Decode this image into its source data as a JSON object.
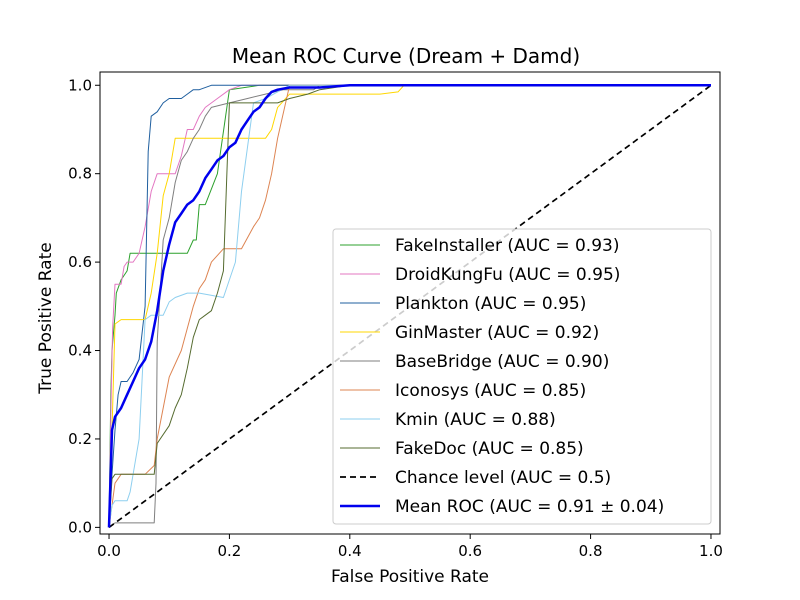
{
  "chart_data": {
    "type": "line",
    "title": "Mean ROC Curve (Dream + Damd)",
    "xlabel": "False Positive Rate",
    "ylabel": "True Positive Rate",
    "xlim": [
      -0.015,
      1.015
    ],
    "ylim": [
      -0.015,
      1.03
    ],
    "xticks": [
      0.0,
      0.2,
      0.4,
      0.6,
      0.8,
      1.0
    ],
    "yticks": [
      0.0,
      0.2,
      0.4,
      0.6,
      0.8,
      1.0
    ],
    "tick_labels": [
      "0.0",
      "0.2",
      "0.4",
      "0.6",
      "0.8",
      "1.0"
    ],
    "grid": false,
    "legend_position": "lower-right",
    "series": [
      {
        "name": "FakeInstaller (AUC = 0.93)",
        "color": "#2ca02c",
        "width": 1,
        "dash": "",
        "x": [
          0,
          0.003,
          0.005,
          0.01,
          0.012,
          0.02,
          0.025,
          0.03,
          0.035,
          0.04,
          0.05,
          0.07,
          0.09,
          0.11,
          0.13,
          0.14,
          0.145,
          0.15,
          0.16,
          0.18,
          0.2,
          0.25,
          0.3,
          0.4,
          1.0
        ],
        "y": [
          0,
          0.3,
          0.4,
          0.48,
          0.53,
          0.56,
          0.57,
          0.58,
          0.62,
          0.62,
          0.62,
          0.62,
          0.62,
          0.62,
          0.62,
          0.65,
          0.65,
          0.73,
          0.73,
          0.8,
          0.99,
          1.0,
          1.0,
          1.0,
          1.0
        ]
      },
      {
        "name": "DroidKungFu (AUC = 0.95)",
        "color": "#e377c2",
        "width": 1,
        "dash": "",
        "x": [
          0,
          0.003,
          0.006,
          0.01,
          0.015,
          0.02,
          0.025,
          0.03,
          0.04,
          0.05,
          0.06,
          0.07,
          0.08,
          0.09,
          0.1,
          0.11,
          0.12,
          0.13,
          0.14,
          0.15,
          0.16,
          0.18,
          0.2,
          0.22,
          0.25,
          0.3,
          1.0
        ],
        "y": [
          0,
          0.25,
          0.45,
          0.55,
          0.55,
          0.55,
          0.59,
          0.6,
          0.6,
          0.62,
          0.68,
          0.76,
          0.8,
          0.8,
          0.8,
          0.8,
          0.84,
          0.9,
          0.9,
          0.93,
          0.95,
          0.97,
          0.99,
          1.0,
          1.0,
          1.0,
          1.0
        ]
      },
      {
        "name": "Plankton (AUC = 0.95)",
        "color": "#1f5f9f",
        "width": 1,
        "dash": "",
        "x": [
          0,
          0.005,
          0.01,
          0.015,
          0.02,
          0.03,
          0.04,
          0.05,
          0.06,
          0.065,
          0.07,
          0.08,
          0.09,
          0.1,
          0.11,
          0.12,
          0.13,
          0.14,
          0.15,
          0.17,
          0.2,
          0.3,
          1.0
        ],
        "y": [
          0,
          0.12,
          0.22,
          0.3,
          0.33,
          0.33,
          0.35,
          0.38,
          0.5,
          0.85,
          0.93,
          0.94,
          0.96,
          0.97,
          0.97,
          0.97,
          0.98,
          0.99,
          0.99,
          1.0,
          1.0,
          1.0,
          1.0
        ]
      },
      {
        "name": "GinMaster (AUC = 0.92)",
        "color": "#ffd700",
        "width": 1,
        "dash": "",
        "x": [
          0,
          0.005,
          0.01,
          0.02,
          0.04,
          0.06,
          0.07,
          0.08,
          0.09,
          0.1,
          0.11,
          0.12,
          0.14,
          0.16,
          0.18,
          0.2,
          0.22,
          0.26,
          0.27,
          0.28,
          0.3,
          0.35,
          0.4,
          0.45,
          0.48,
          0.49,
          0.5,
          1.0
        ],
        "y": [
          0,
          0.22,
          0.46,
          0.47,
          0.47,
          0.47,
          0.53,
          0.62,
          0.75,
          0.8,
          0.88,
          0.88,
          0.88,
          0.88,
          0.88,
          0.88,
          0.88,
          0.88,
          0.9,
          0.95,
          0.98,
          0.98,
          0.98,
          0.98,
          0.985,
          1.0,
          1.0,
          1.0
        ]
      },
      {
        "name": "BaseBridge (AUC = 0.90)",
        "color": "#7f7f7f",
        "width": 1,
        "dash": "",
        "x": [
          0,
          0.01,
          0.05,
          0.075,
          0.078,
          0.08,
          0.09,
          0.1,
          0.11,
          0.12,
          0.13,
          0.14,
          0.15,
          0.16,
          0.17,
          0.2,
          0.23,
          0.26,
          0.29,
          0.32,
          0.34,
          0.35,
          0.4,
          1.0
        ],
        "y": [
          0,
          0.01,
          0.01,
          0.01,
          0.1,
          0.42,
          0.65,
          0.7,
          0.78,
          0.83,
          0.85,
          0.88,
          0.9,
          0.93,
          0.95,
          0.96,
          0.97,
          0.98,
          0.99,
          0.99,
          0.99,
          1.0,
          1.0,
          1.0
        ]
      },
      {
        "name": "Iconosys (AUC = 0.85)",
        "color": "#dd8452",
        "width": 1,
        "dash": "",
        "x": [
          0,
          0.01,
          0.02,
          0.04,
          0.06,
          0.075,
          0.08,
          0.1,
          0.12,
          0.14,
          0.15,
          0.16,
          0.17,
          0.19,
          0.2,
          0.22,
          0.24,
          0.25,
          0.26,
          0.27,
          0.28,
          0.3,
          0.35,
          1.0
        ],
        "y": [
          0,
          0.1,
          0.12,
          0.12,
          0.12,
          0.14,
          0.2,
          0.34,
          0.4,
          0.5,
          0.54,
          0.56,
          0.6,
          0.63,
          0.63,
          0.63,
          0.68,
          0.7,
          0.74,
          0.8,
          0.88,
          1.0,
          1.0,
          1.0
        ]
      },
      {
        "name": "Kmin (AUC = 0.88)",
        "color": "#8ecfef",
        "width": 1,
        "dash": "",
        "x": [
          0,
          0.005,
          0.01,
          0.02,
          0.03,
          0.035,
          0.04,
          0.05,
          0.06,
          0.07,
          0.09,
          0.1,
          0.11,
          0.13,
          0.15,
          0.19,
          0.21,
          0.22,
          0.24,
          0.26,
          0.3,
          0.4,
          1.0
        ],
        "y": [
          0,
          0.05,
          0.06,
          0.06,
          0.06,
          0.08,
          0.12,
          0.2,
          0.47,
          0.48,
          0.48,
          0.51,
          0.52,
          0.53,
          0.53,
          0.52,
          0.6,
          0.76,
          0.96,
          0.97,
          1.0,
          1.0,
          1.0
        ]
      },
      {
        "name": "FakeDoc (AUC = 0.85)",
        "color": "#556b2f",
        "width": 1,
        "dash": "",
        "x": [
          0,
          0.005,
          0.01,
          0.04,
          0.075,
          0.08,
          0.1,
          0.11,
          0.12,
          0.13,
          0.14,
          0.15,
          0.16,
          0.17,
          0.18,
          0.19,
          0.2,
          0.23,
          0.25,
          0.26,
          0.28,
          0.3,
          0.33,
          0.35,
          0.4,
          1.0
        ],
        "y": [
          0,
          0.11,
          0.12,
          0.12,
          0.12,
          0.19,
          0.23,
          0.27,
          0.3,
          0.36,
          0.43,
          0.47,
          0.48,
          0.49,
          0.53,
          0.58,
          0.96,
          0.96,
          0.96,
          0.96,
          0.96,
          0.97,
          0.98,
          0.99,
          1.0,
          1.0
        ]
      },
      {
        "name": "Chance level (AUC = 0.5)",
        "color": "#000000",
        "width": 1.7,
        "dash": "6,4",
        "x": [
          0,
          1
        ],
        "y": [
          0,
          1
        ]
      },
      {
        "name": "Mean ROC (AUC = 0.91 ± 0.04)",
        "color": "#0000ee",
        "width": 2.5,
        "dash": "",
        "label_color": "#cc0000",
        "x": [
          0,
          0.005,
          0.01,
          0.02,
          0.03,
          0.04,
          0.05,
          0.06,
          0.07,
          0.08,
          0.09,
          0.1,
          0.11,
          0.12,
          0.13,
          0.14,
          0.15,
          0.16,
          0.17,
          0.18,
          0.19,
          0.2,
          0.21,
          0.22,
          0.23,
          0.24,
          0.25,
          0.26,
          0.27,
          0.28,
          0.3,
          0.35,
          0.4,
          0.5,
          0.6,
          0.8,
          1.0
        ],
        "y": [
          0,
          0.22,
          0.25,
          0.27,
          0.3,
          0.33,
          0.36,
          0.38,
          0.42,
          0.49,
          0.58,
          0.64,
          0.69,
          0.71,
          0.73,
          0.74,
          0.76,
          0.79,
          0.81,
          0.83,
          0.84,
          0.86,
          0.87,
          0.9,
          0.92,
          0.94,
          0.95,
          0.97,
          0.985,
          0.99,
          0.995,
          0.995,
          1.0,
          1.0,
          1.0,
          1.0,
          1.0
        ]
      }
    ]
  }
}
